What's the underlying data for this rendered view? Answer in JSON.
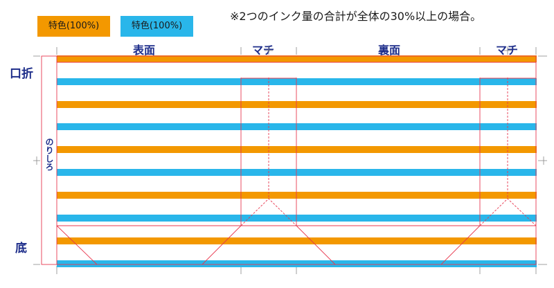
{
  "legend": {
    "orange": {
      "label": "特色(100%)",
      "color": "#f39800"
    },
    "cyan": {
      "label": "特色(100%)",
      "color": "#29b6ea"
    }
  },
  "note": "※2つのインク量の合計が全体の30%以上の場合。",
  "panels": {
    "front": "表面",
    "gusset_left": "マチ",
    "back": "裏面",
    "gusset_right": "マチ"
  },
  "side_labels": {
    "top": "口折",
    "glue": "のりしろ",
    "bottom": "底"
  },
  "stripes": [
    "orange",
    "cyan",
    "orange",
    "cyan",
    "orange",
    "cyan",
    "orange",
    "cyan",
    "orange",
    "cyan"
  ],
  "colors": {
    "guide_line": "#e8384f",
    "crop_mark": "#888888"
  }
}
